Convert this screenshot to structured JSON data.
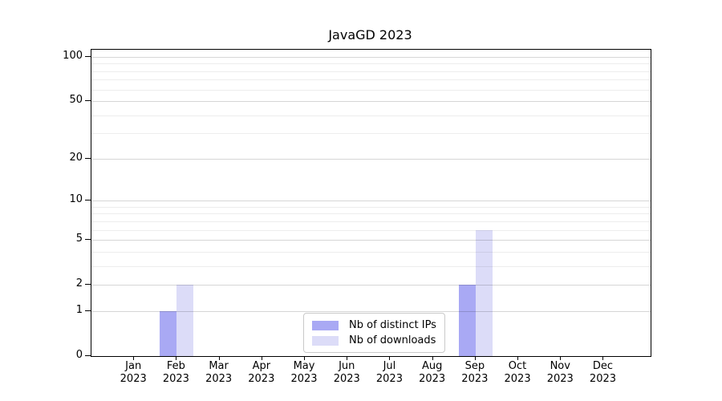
{
  "chart_data": {
    "type": "bar",
    "title": "JavaGD 2023",
    "categories": [
      "Jan 2023",
      "Feb 2023",
      "Mar 2023",
      "Apr 2023",
      "May 2023",
      "Jun 2023",
      "Jul 2023",
      "Aug 2023",
      "Sep 2023",
      "Oct 2023",
      "Nov 2023",
      "Dec 2023"
    ],
    "x_tick_months": [
      "Jan",
      "Feb",
      "Mar",
      "Apr",
      "May",
      "Jun",
      "Jul",
      "Aug",
      "Sep",
      "Oct",
      "Nov",
      "Dec"
    ],
    "x_tick_year": "2023",
    "series": [
      {
        "name": "Nb of distinct IPs",
        "color": "#a9a9f4",
        "values": [
          0,
          1,
          0,
          0,
          0,
          0,
          0,
          0,
          2,
          0,
          0,
          0
        ]
      },
      {
        "name": "Nb of downloads",
        "color": "#dcdcf8",
        "values": [
          0,
          2,
          0,
          0,
          0,
          0,
          0,
          0,
          6,
          0,
          0,
          0
        ]
      }
    ],
    "yscale": "log10(1+x)",
    "ylim": [
      0,
      100
    ],
    "y_major_ticks": [
      0,
      1,
      2,
      5,
      10,
      20,
      50,
      100
    ],
    "y_minor_gridlines": [
      3,
      4,
      6,
      7,
      8,
      9,
      30,
      40,
      60,
      70,
      80,
      90
    ],
    "grid": true,
    "legend_position": "lower center inside",
    "colors": {
      "frame": "#000000",
      "background": "#ffffff",
      "bar_distinct_ips": "#a9a9f4",
      "bar_downloads": "#dcdcf8"
    }
  }
}
